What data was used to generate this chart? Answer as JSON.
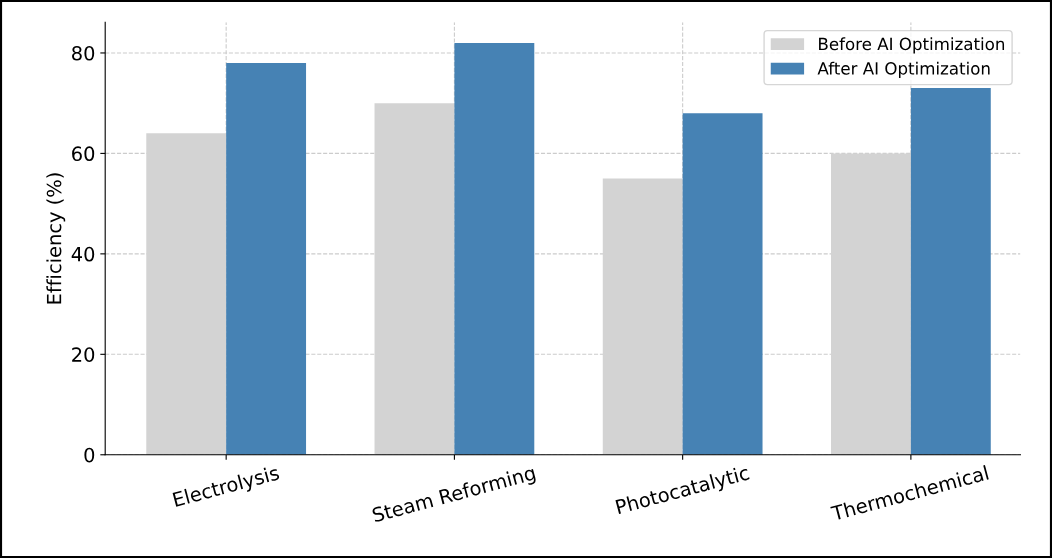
{
  "chart_data": {
    "type": "bar",
    "ylabel": "Efficiency (%)",
    "categories": [
      "Electrolysis",
      "Steam Reforming",
      "Photocatalytic",
      "Thermochemical"
    ],
    "series": [
      {
        "name": "Before AI Optimization",
        "color": "#d3d3d3",
        "values": [
          64,
          70,
          55,
          60
        ]
      },
      {
        "name": "After AI Optimization",
        "color": "#4682b4",
        "values": [
          78,
          82,
          68,
          73
        ]
      }
    ],
    "ylim": [
      0,
      86.1
    ],
    "yticks": [
      0,
      20,
      40,
      60,
      80
    ],
    "grid": true,
    "legend": "top right"
  }
}
